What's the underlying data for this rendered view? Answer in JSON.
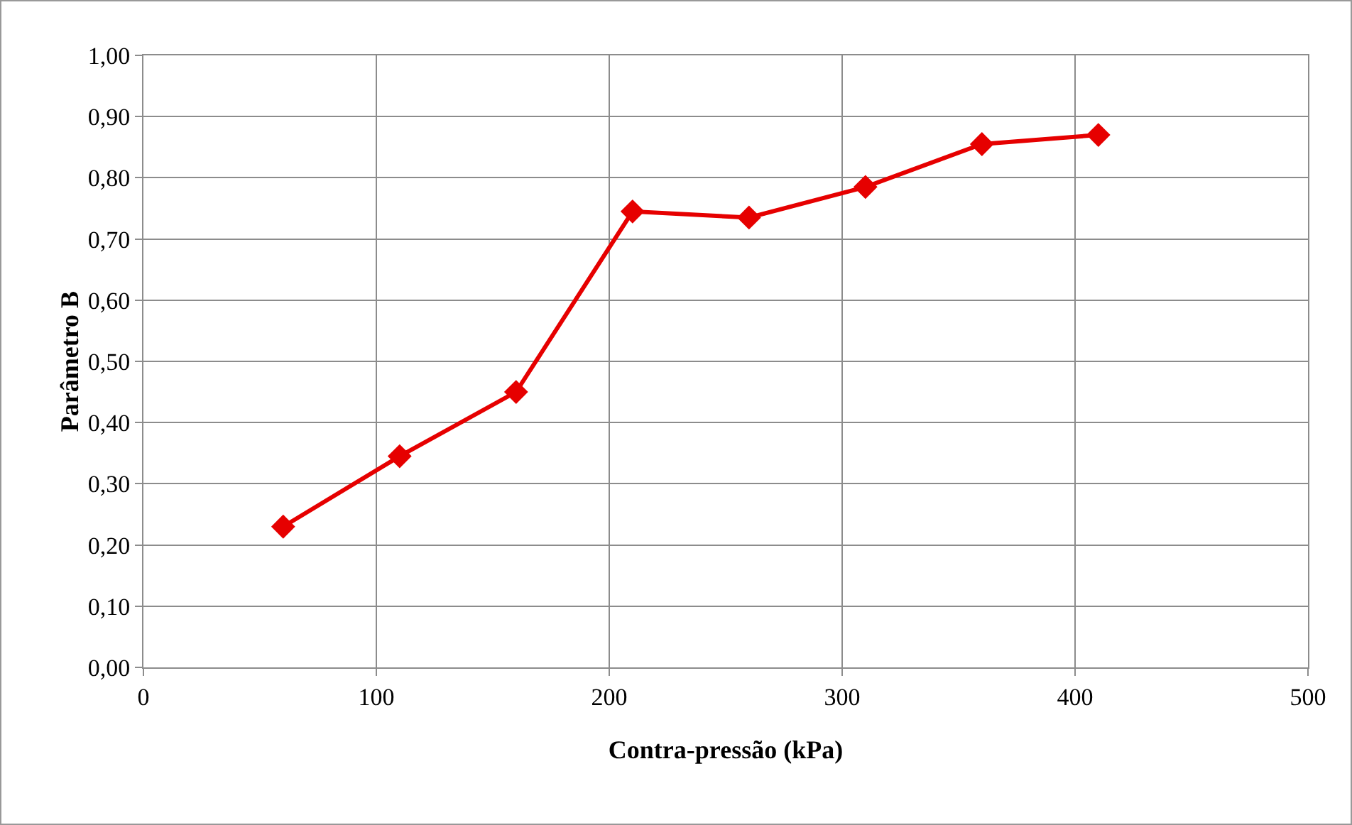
{
  "chart_data": {
    "type": "line",
    "xlabel": "Contra-pressão (kPa)",
    "ylabel": "Parâmetro B",
    "x": [
      60,
      110,
      160,
      210,
      260,
      310,
      360,
      410
    ],
    "series": [
      {
        "color": "#e60000",
        "values": [
          0.23,
          0.345,
          0.45,
          0.745,
          0.735,
          0.785,
          0.855,
          0.87
        ]
      }
    ],
    "xlim": [
      0,
      500
    ],
    "xticks": [
      0,
      100,
      200,
      300,
      400,
      500
    ],
    "ylim": [
      0,
      1
    ],
    "yticks": [
      {
        "value": 0,
        "label": "0,00"
      },
      {
        "value": 0.1,
        "label": "0,10"
      },
      {
        "value": 0.2,
        "label": "0,20"
      },
      {
        "value": 0.3,
        "label": "0,30"
      },
      {
        "value": 0.4,
        "label": "0,40"
      },
      {
        "value": 0.5,
        "label": "0,50"
      },
      {
        "value": 0.6,
        "label": "0,60"
      },
      {
        "value": 0.7,
        "label": "0,70"
      },
      {
        "value": 0.8,
        "label": "0,80"
      },
      {
        "value": 0.9,
        "label": "0,90"
      },
      {
        "value": 1,
        "label": "1,00"
      }
    ],
    "grid": true,
    "marker": "diamond",
    "line_style": "solid"
  }
}
